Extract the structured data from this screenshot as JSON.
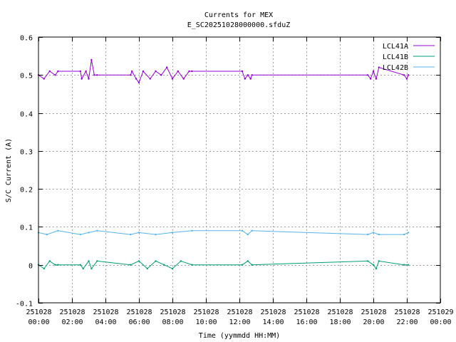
{
  "chart_data": {
    "type": "line",
    "title": "Currents for MEX",
    "subtitle": "E_SC20251028000000.sfduZ",
    "xlabel": "Time (yymmdd HH:MM)",
    "ylabel": "S/C Current (A)",
    "xlim": [
      "2025-10-28T00:00",
      "2025-10-29T00:00"
    ],
    "ylim": [
      -0.1,
      0.6
    ],
    "grid": true,
    "legend_position": "top-right",
    "x_ticks": [
      {
        "t": "2025-10-28T00:00",
        "date": "251028",
        "time": "00:00"
      },
      {
        "t": "2025-10-28T02:00",
        "date": "251028",
        "time": "02:00"
      },
      {
        "t": "2025-10-28T04:00",
        "date": "251028",
        "time": "04:00"
      },
      {
        "t": "2025-10-28T06:00",
        "date": "251028",
        "time": "06:00"
      },
      {
        "t": "2025-10-28T08:00",
        "date": "251028",
        "time": "08:00"
      },
      {
        "t": "2025-10-28T10:00",
        "date": "251028",
        "time": "10:00"
      },
      {
        "t": "2025-10-28T12:00",
        "date": "251028",
        "time": "12:00"
      },
      {
        "t": "2025-10-28T14:00",
        "date": "251028",
        "time": "14:00"
      },
      {
        "t": "2025-10-28T16:00",
        "date": "251028",
        "time": "16:00"
      },
      {
        "t": "2025-10-28T18:00",
        "date": "251028",
        "time": "18:00"
      },
      {
        "t": "2025-10-28T20:00",
        "date": "251028",
        "time": "20:00"
      },
      {
        "t": "2025-10-28T22:00",
        "date": "251028",
        "time": "22:00"
      },
      {
        "t": "2025-10-29T00:00",
        "date": "251029",
        "time": "00:00"
      }
    ],
    "y_ticks": [
      -0.1,
      0,
      0.1,
      0.2,
      0.3,
      0.4,
      0.5,
      0.6
    ],
    "y_tick_labels": [
      "-0.1",
      "0",
      "0.1",
      "0.2",
      "0.3",
      "0.4",
      "0.5",
      "0.6"
    ],
    "series": [
      {
        "name": "LCL41A",
        "color": "#9400d3",
        "points": [
          [
            "2025-10-28T00:00",
            0.5
          ],
          [
            "2025-10-28T00:20",
            0.49
          ],
          [
            "2025-10-28T00:40",
            0.51
          ],
          [
            "2025-10-28T01:00",
            0.5
          ],
          [
            "2025-10-28T01:10",
            0.51
          ],
          [
            "2025-10-28T02:30",
            0.51
          ],
          [
            "2025-10-28T02:35",
            0.49
          ],
          [
            "2025-10-28T02:50",
            0.51
          ],
          [
            "2025-10-28T03:00",
            0.49
          ],
          [
            "2025-10-28T03:10",
            0.54
          ],
          [
            "2025-10-28T03:20",
            0.5
          ],
          [
            "2025-10-28T03:30",
            0.5
          ],
          [
            "2025-10-28T05:30",
            0.5
          ],
          [
            "2025-10-28T05:35",
            0.51
          ],
          [
            "2025-10-28T05:50",
            0.49
          ],
          [
            "2025-10-28T06:00",
            0.48
          ],
          [
            "2025-10-28T06:15",
            0.51
          ],
          [
            "2025-10-28T06:40",
            0.49
          ],
          [
            "2025-10-28T07:00",
            0.51
          ],
          [
            "2025-10-28T07:20",
            0.5
          ],
          [
            "2025-10-28T07:40",
            0.52
          ],
          [
            "2025-10-28T08:00",
            0.49
          ],
          [
            "2025-10-28T08:20",
            0.51
          ],
          [
            "2025-10-28T08:40",
            0.49
          ],
          [
            "2025-10-28T09:00",
            0.51
          ],
          [
            "2025-10-28T09:10",
            0.51
          ],
          [
            "2025-10-28T12:10",
            0.51
          ],
          [
            "2025-10-28T12:20",
            0.49
          ],
          [
            "2025-10-28T12:30",
            0.5
          ],
          [
            "2025-10-28T12:40",
            0.49
          ],
          [
            "2025-10-28T12:45",
            0.5
          ],
          [
            "2025-10-28T19:40",
            0.5
          ],
          [
            "2025-10-28T19:50",
            0.49
          ],
          [
            "2025-10-28T20:00",
            0.51
          ],
          [
            "2025-10-28T20:10",
            0.49
          ],
          [
            "2025-10-28T20:20",
            0.52
          ],
          [
            "2025-10-28T21:50",
            0.5
          ],
          [
            "2025-10-28T22:00",
            0.49
          ],
          [
            "2025-10-28T22:05",
            0.5
          ]
        ]
      },
      {
        "name": "LCL41B",
        "color": "#009e73",
        "points": [
          [
            "2025-10-28T00:00",
            0.0
          ],
          [
            "2025-10-28T00:20",
            -0.01
          ],
          [
            "2025-10-28T00:40",
            0.01
          ],
          [
            "2025-10-28T01:00",
            0.0
          ],
          [
            "2025-10-28T01:10",
            0.0
          ],
          [
            "2025-10-28T02:30",
            0.0
          ],
          [
            "2025-10-28T02:40",
            -0.01
          ],
          [
            "2025-10-28T03:00",
            0.01
          ],
          [
            "2025-10-28T03:10",
            -0.01
          ],
          [
            "2025-10-28T03:30",
            0.01
          ],
          [
            "2025-10-28T05:30",
            0.0
          ],
          [
            "2025-10-28T06:00",
            0.01
          ],
          [
            "2025-10-28T06:30",
            -0.01
          ],
          [
            "2025-10-28T07:00",
            0.01
          ],
          [
            "2025-10-28T07:30",
            0.0
          ],
          [
            "2025-10-28T08:00",
            -0.01
          ],
          [
            "2025-10-28T08:30",
            0.01
          ],
          [
            "2025-10-28T09:10",
            0.0
          ],
          [
            "2025-10-28T12:10",
            0.0
          ],
          [
            "2025-10-28T12:30",
            0.01
          ],
          [
            "2025-10-28T12:45",
            0.0
          ],
          [
            "2025-10-28T19:40",
            0.01
          ],
          [
            "2025-10-28T20:00",
            0.0
          ],
          [
            "2025-10-28T20:10",
            -0.01
          ],
          [
            "2025-10-28T20:20",
            0.01
          ],
          [
            "2025-10-28T21:50",
            0.0
          ],
          [
            "2025-10-28T22:05",
            0.0
          ]
        ]
      },
      {
        "name": "LCL42B",
        "color": "#56b4e9",
        "points": [
          [
            "2025-10-28T00:00",
            0.085
          ],
          [
            "2025-10-28T00:30",
            0.08
          ],
          [
            "2025-10-28T01:10",
            0.09
          ],
          [
            "2025-10-28T02:30",
            0.08
          ],
          [
            "2025-10-28T03:00",
            0.085
          ],
          [
            "2025-10-28T03:30",
            0.09
          ],
          [
            "2025-10-28T05:30",
            0.08
          ],
          [
            "2025-10-28T06:00",
            0.085
          ],
          [
            "2025-10-28T07:00",
            0.08
          ],
          [
            "2025-10-28T08:00",
            0.085
          ],
          [
            "2025-10-28T09:10",
            0.09
          ],
          [
            "2025-10-28T12:10",
            0.09
          ],
          [
            "2025-10-28T12:30",
            0.08
          ],
          [
            "2025-10-28T12:45",
            0.09
          ],
          [
            "2025-10-28T19:40",
            0.08
          ],
          [
            "2025-10-28T20:00",
            0.085
          ],
          [
            "2025-10-28T20:20",
            0.08
          ],
          [
            "2025-10-28T21:50",
            0.08
          ],
          [
            "2025-10-28T22:05",
            0.085
          ]
        ]
      }
    ]
  }
}
